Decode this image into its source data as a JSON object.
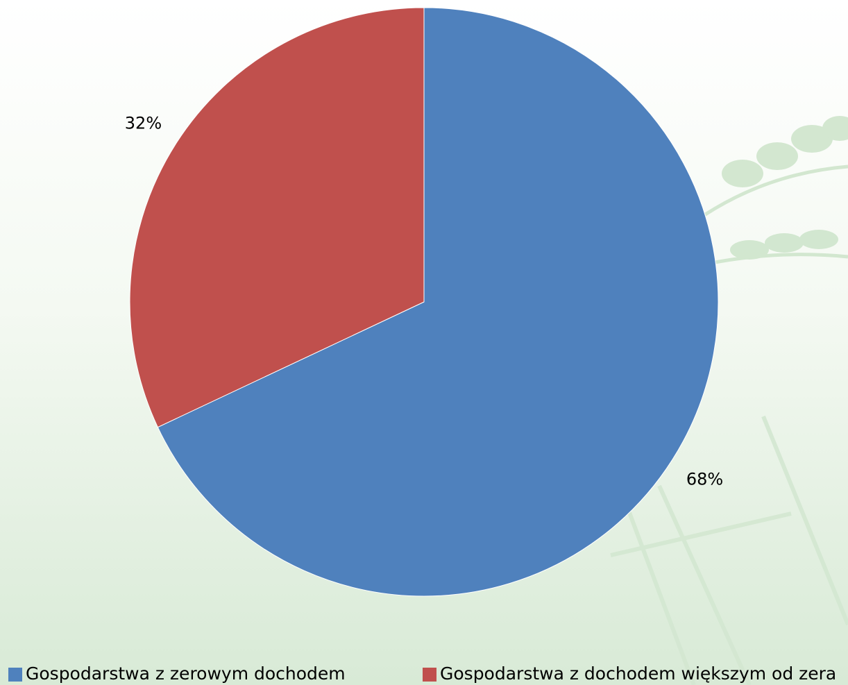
{
  "chart_data": {
    "type": "pie",
    "categories": [
      "Gospodarstwa z zerowym dochodem",
      "Gospodarstwa z dochodem większym od zera"
    ],
    "values": [
      68,
      32
    ],
    "value_labels": [
      "68%",
      "32%"
    ],
    "colors": [
      "#4f81bd",
      "#c0504d"
    ],
    "legend": "bottom"
  }
}
